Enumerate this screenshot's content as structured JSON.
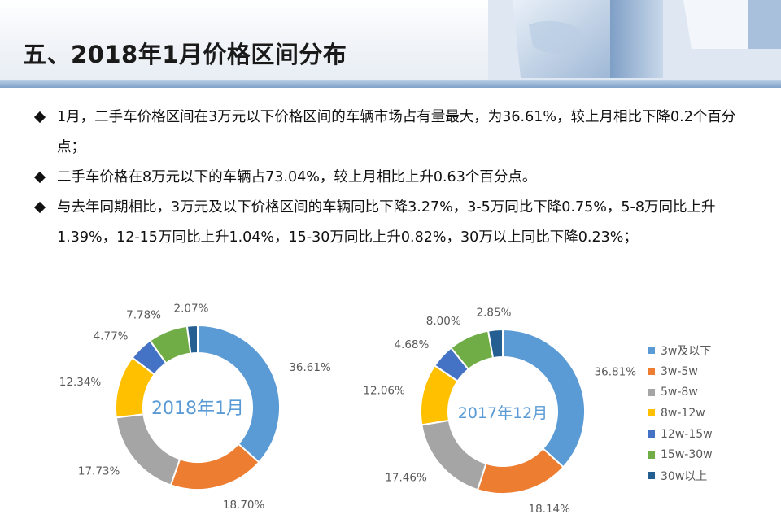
{
  "header": {
    "title": "五、2018年1月价格区间分布"
  },
  "bullets": [
    "1月，二手车价格区间在3万元以下价格区间的车辆市场占有量最大，为36.61%，较上月相比下降0.2个百分点；",
    "二手车价格在8万元以下的车辆占73.04%，较上月相比上升0.63个百分点。",
    "与去年同期相比，3万元及以下价格区间的车辆同比下降3.27%，3-5万同比下降0.75%，5-8万同比上升1.39%，12-15万同比上升1.04%，15-30万同比上升0.82%，30万以上同比下降0.23%；"
  ],
  "chart_data": [
    {
      "type": "pie",
      "variant": "donut",
      "title": "2018年1月",
      "categories": [
        "3w及以下",
        "3w-5w",
        "5w-8w",
        "8w-12w",
        "12w-15w",
        "15w-30w",
        "30w以上"
      ],
      "values": [
        36.61,
        18.7,
        17.73,
        12.34,
        4.77,
        7.78,
        2.07
      ],
      "labels": [
        "36.61%",
        "18.70%",
        "17.73%",
        "12.34%",
        "4.77%",
        "7.78%",
        "2.07%"
      ]
    },
    {
      "type": "pie",
      "variant": "donut",
      "title": "2017年12月",
      "categories": [
        "3w及以下",
        "3w-5w",
        "5w-8w",
        "8w-12w",
        "12w-15w",
        "15w-30w",
        "30w以上"
      ],
      "values": [
        36.81,
        18.14,
        17.46,
        12.06,
        4.68,
        8.0,
        2.85
      ],
      "labels": [
        "36.81%",
        "18.14%",
        "17.46%",
        "12.06%",
        "4.68%",
        "8.00%",
        "2.85%"
      ]
    }
  ],
  "legend": {
    "position": "right",
    "items": [
      "3w及以下",
      "3w-5w",
      "5w-8w",
      "8w-12w",
      "12w-15w",
      "15w-30w",
      "30w以上"
    ]
  },
  "colors": [
    "#5b9bd5",
    "#ed7d31",
    "#a5a5a5",
    "#ffc000",
    "#4472c4",
    "#70ad47",
    "#255e91"
  ],
  "title_color": "#5b9bd5",
  "label_color": "#595959"
}
